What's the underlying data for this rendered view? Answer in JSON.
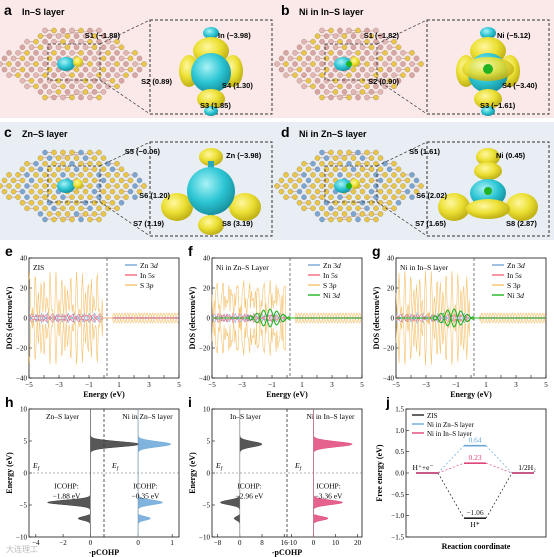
{
  "panels": {
    "a": {
      "letter": "a",
      "title": "In–S layer",
      "labels": [
        {
          "t": "S1 (−1.88)"
        },
        {
          "t": "In (−3.98)"
        },
        {
          "t": "S4 (1.30)"
        },
        {
          "t": "S2 (0.89)"
        },
        {
          "t": "S3 (1.85)"
        }
      ]
    },
    "b": {
      "letter": "b",
      "title": "Ni in In–S layer",
      "labels": [
        {
          "t": "S1 (−1.82)"
        },
        {
          "t": "Ni (−5.12)"
        },
        {
          "t": "S2 (0.90)"
        },
        {
          "t": "S4 (−3.40)"
        },
        {
          "t": "S3 (−1.61)"
        }
      ]
    },
    "c": {
      "letter": "c",
      "title": "Zn–S layer",
      "labels": [
        {
          "t": "S5 (−0.06)"
        },
        {
          "t": "Zn (−3.98)"
        },
        {
          "t": "S6 (1.20)"
        },
        {
          "t": "S7 (1.19)"
        },
        {
          "t": "S8 (3.19)"
        }
      ]
    },
    "d": {
      "letter": "d",
      "title": "Ni in Zn–S layer",
      "labels": [
        {
          "t": "S5 (1.61)"
        },
        {
          "t": "Ni (0.45)"
        },
        {
          "t": "S6 (2.02)"
        },
        {
          "t": "S7 (1.65)"
        },
        {
          "t": "S8 (2.87)"
        }
      ]
    }
  },
  "colors": {
    "panel_ab_bg": "#fbe9ea",
    "panel_cd_bg": "#e8eef4",
    "isosurface_yellow": "#e8dc2a",
    "isosurface_cyan": "#2bc6d2",
    "zn": "#7aa6d6",
    "in": "#ef6f8a",
    "s": "#e9c64a",
    "ni": "#21b321",
    "atom_pink": "#e3b7b6"
  },
  "chart_data": [
    {
      "panel": "e",
      "type": "line",
      "letter": "e",
      "inset": "ZIS",
      "xlabel": "Energy (eV)",
      "ylabel": "DOS (electron/eV)",
      "xlim": [
        -5,
        5
      ],
      "ylim": [
        -40,
        40
      ],
      "xticks": [
        "−5",
        "−4",
        "−3",
        "−2",
        "−1",
        "0",
        "1",
        "2",
        "3",
        "4",
        "5"
      ],
      "yticks": [
        "−40",
        "−20",
        "0",
        "20",
        "40"
      ],
      "series": [
        {
          "name": "Zn 3d",
          "italic": "d",
          "color": "#7aa6d6"
        },
        {
          "name": "In 5s",
          "italic": "s",
          "color": "#f26a7a"
        },
        {
          "name": "S 3p",
          "italic": "p",
          "color": "#f5c16c"
        }
      ],
      "fermi": 0.2
    },
    {
      "panel": "f",
      "type": "line",
      "letter": "f",
      "inset": "Ni in Zn–S Layer",
      "xlabel": "Energy (eV)",
      "ylabel": "DOS (electron/eV)",
      "xlim": [
        -5,
        5
      ],
      "ylim": [
        -40,
        40
      ],
      "xticks": [
        "−5",
        "−4",
        "−3",
        "−2",
        "−1",
        "0",
        "1",
        "2",
        "3",
        "4",
        "5"
      ],
      "yticks": [
        "−40",
        "−20",
        "0",
        "20",
        "40"
      ],
      "series": [
        {
          "name": "Zn 3d",
          "italic": "d",
          "color": "#7aa6d6"
        },
        {
          "name": "In 5s",
          "italic": "s",
          "color": "#f26a7a"
        },
        {
          "name": "S 3p",
          "italic": "p",
          "color": "#f5c16c"
        },
        {
          "name": "Ni 3d",
          "italic": "d",
          "color": "#21b321"
        }
      ],
      "fermi": 0.2
    },
    {
      "panel": "g",
      "type": "line",
      "letter": "g",
      "inset": "Ni in In–S layer",
      "xlabel": "Energy (eV)",
      "ylabel": "DOS (electron/eV)",
      "xlim": [
        -5,
        5
      ],
      "ylim": [
        -40,
        40
      ],
      "xticks": [
        "−5",
        "−4",
        "−3",
        "−2",
        "−1",
        "0",
        "1",
        "2",
        "3",
        "4",
        "5"
      ],
      "yticks": [
        "−40",
        "−20",
        "0",
        "20",
        "40"
      ],
      "series": [
        {
          "name": "Zn 3d",
          "italic": "d",
          "color": "#7aa6d6"
        },
        {
          "name": "In 5s",
          "italic": "s",
          "color": "#f26a7a"
        },
        {
          "name": "S 3p",
          "italic": "p",
          "color": "#f5c16c"
        },
        {
          "name": "Ni 3d",
          "italic": "d",
          "color": "#21b321"
        }
      ],
      "fermi": 0.2
    },
    {
      "panel": "h",
      "type": "area",
      "letter": "h",
      "xlabel": "-pCOHP",
      "ylabel": "Energy (eV)",
      "ylim": [
        -10,
        10
      ],
      "yticks": [
        "−10",
        "−5",
        "0",
        "5",
        "10"
      ],
      "left": {
        "title": "Zn–S layer",
        "xlim": [
          -4.5,
          1
        ],
        "xticks": [
          "−4",
          "−2",
          "0"
        ],
        "color": "#3a3a3a",
        "icohp_label": "ICOHP:",
        "icohp_value": "−1.88 eV"
      },
      "right": {
        "title": "Ni in Zn–S layer",
        "xlim": [
          -1,
          1.2
        ],
        "xticks": [
          "0",
          "1"
        ],
        "color": "#6aa7d8",
        "icohp_label": "ICOHP:",
        "icohp_value": "−0.35 eV"
      },
      "fermi_label": "Ef"
    },
    {
      "panel": "i",
      "type": "area",
      "letter": "i",
      "xlabel": "-pCOHP",
      "ylabel": "Energy (eV)",
      "ylim": [
        -10,
        10
      ],
      "yticks": [
        "−10",
        "−5",
        "0",
        "5",
        "10"
      ],
      "left": {
        "title": "In–S layer",
        "xlim": [
          -10,
          17
        ],
        "xticks": [
          "−8",
          "0",
          "8",
          "16"
        ],
        "color": "#3a3a3a",
        "icohp_label": "ICOHP:",
        "icohp_value": "−2.96 eV"
      },
      "right": {
        "title": "Ni in In–S layer",
        "xlim": [
          -12,
          22
        ],
        "xticks": [
          "−10",
          "0",
          "10",
          "20"
        ],
        "color": "#e0457a",
        "icohp_label": "ICOHP:",
        "icohp_value": "−3.36 eV"
      },
      "fermi_label": "Ef"
    },
    {
      "panel": "j",
      "type": "line",
      "letter": "j",
      "xlabel": "Reaction coordinate",
      "ylabel": "Free energy (eV)",
      "ylim": [
        -1.5,
        1.5
      ],
      "yticks": [
        "−1.5",
        "−1.0",
        "−0.5",
        "0.0",
        "0.5",
        "1.0",
        "1.5"
      ],
      "states": [
        "H⁺+e⁻",
        "H*",
        "1/2H₂"
      ],
      "series": [
        {
          "name": "ZIS",
          "color": "#222222",
          "values": [
            0,
            -1.06,
            0
          ],
          "label": "−1.06"
        },
        {
          "name": "Ni in Zn–S layer",
          "color": "#6aa7d8",
          "values": [
            0,
            0.64,
            0
          ],
          "label": "0.64"
        },
        {
          "name": "Ni in In–S layer",
          "color": "#e0457a",
          "values": [
            0,
            0.23,
            0
          ],
          "label": "0.23"
        }
      ]
    }
  ],
  "watermark": "大连理工"
}
